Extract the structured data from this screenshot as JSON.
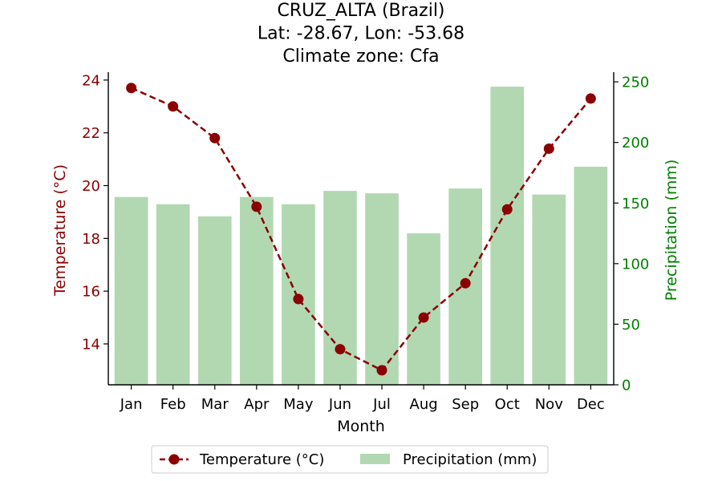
{
  "chart_data": {
    "type": "bar+line",
    "title_lines": [
      "CRUZ_ALTA (Brazil)",
      "Lat: -28.67, Lon: -53.68",
      "Climate zone: Cfa"
    ],
    "xlabel": "Month",
    "categories": [
      "Jan",
      "Feb",
      "Mar",
      "Apr",
      "May",
      "Jun",
      "Jul",
      "Aug",
      "Sep",
      "Oct",
      "Nov",
      "Dec"
    ],
    "temperature": {
      "name": "Temperature (°C)",
      "axis_label": "Temperature (°C)",
      "color": "#8b0000",
      "values": [
        23.7,
        23.0,
        21.8,
        19.2,
        15.7,
        13.8,
        13.0,
        15.0,
        16.3,
        19.1,
        21.4,
        23.3
      ],
      "ylim": [
        12.45,
        24.3
      ],
      "ticks": [
        14,
        16,
        18,
        20,
        22,
        24
      ]
    },
    "precipitation": {
      "name": "Precipitation (mm)",
      "axis_label": "Precipitation (mm)",
      "color": "#008000",
      "bar_color": "#b2d8b2",
      "values": [
        155,
        149,
        139,
        155,
        149,
        160,
        158,
        125,
        162,
        246,
        157,
        180
      ],
      "ylim": [
        0,
        258
      ],
      "ticks": [
        0,
        50,
        100,
        150,
        200,
        250
      ]
    },
    "legend": {
      "placement": "bottom-center",
      "entries": [
        "Temperature (°C)",
        "Precipitation (mm)"
      ]
    }
  }
}
